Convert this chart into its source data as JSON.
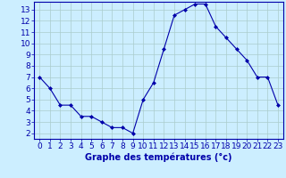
{
  "hours": [
    0,
    1,
    2,
    3,
    4,
    5,
    6,
    7,
    8,
    9,
    10,
    11,
    12,
    13,
    14,
    15,
    16,
    17,
    18,
    19,
    20,
    21,
    22,
    23
  ],
  "temperatures": [
    7.0,
    6.0,
    4.5,
    4.5,
    3.5,
    3.5,
    3.0,
    2.5,
    2.5,
    2.0,
    5.0,
    6.5,
    9.5,
    12.5,
    13.0,
    13.5,
    13.5,
    11.5,
    10.5,
    9.5,
    8.5,
    7.0,
    7.0,
    4.5
  ],
  "line_color": "#0000aa",
  "marker": "D",
  "marker_size": 2,
  "bg_color": "#cceeff",
  "grid_color": "#aacccc",
  "xlabel": "Graphe des températures (°c)",
  "xlabel_color": "#0000aa",
  "xlabel_fontsize": 7,
  "tick_fontsize": 6.5,
  "tick_color": "#0000aa",
  "xlim": [
    -0.5,
    23.5
  ],
  "ylim": [
    1.5,
    13.7
  ],
  "yticks": [
    2,
    3,
    4,
    5,
    6,
    7,
    8,
    9,
    10,
    11,
    12,
    13
  ],
  "xticks": [
    0,
    1,
    2,
    3,
    4,
    5,
    6,
    7,
    8,
    9,
    10,
    11,
    12,
    13,
    14,
    15,
    16,
    17,
    18,
    19,
    20,
    21,
    22,
    23
  ]
}
